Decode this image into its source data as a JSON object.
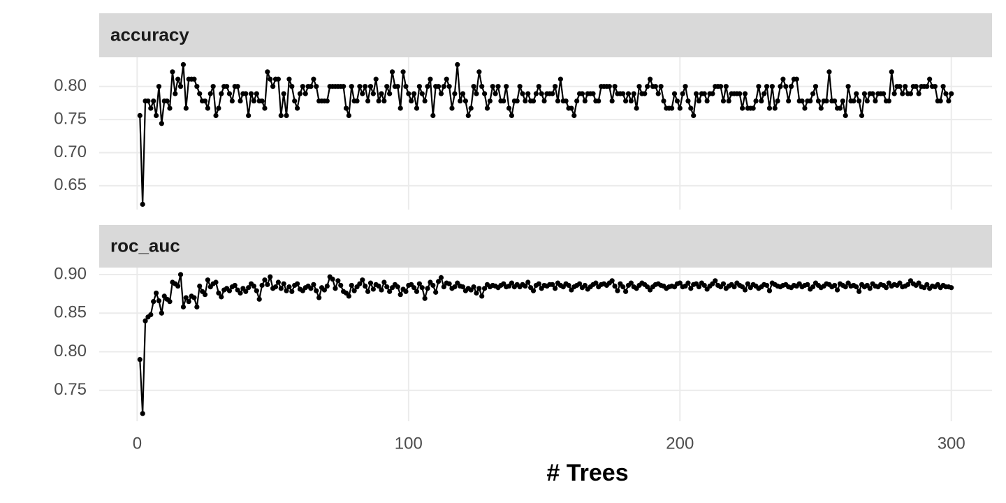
{
  "chart_data": [
    {
      "type": "line",
      "title": "accuracy",
      "color": "#000000",
      "grid": true,
      "xlim": [
        -14,
        315
      ],
      "xticks": [
        0,
        100,
        200,
        300
      ],
      "ylim": [
        0.614,
        0.844
      ],
      "yticks": [
        {
          "value": 0.65,
          "label": "0.65"
        },
        {
          "value": 0.7,
          "label": "0.70"
        },
        {
          "value": 0.75,
          "label": "0.75"
        },
        {
          "value": 0.8,
          "label": "0.80"
        }
      ],
      "x": [
        1,
        2,
        3,
        4,
        5,
        6,
        7,
        8,
        9,
        10,
        11,
        12,
        13,
        14,
        15,
        16,
        17,
        18,
        19,
        20,
        21,
        22,
        23,
        24,
        25,
        26,
        27,
        28,
        29,
        30,
        31,
        32,
        33,
        34,
        35,
        36,
        37,
        38,
        39,
        40,
        41,
        42,
        43,
        44,
        45,
        46,
        47,
        48,
        49,
        50,
        51,
        52,
        53,
        54,
        55,
        56,
        57,
        58,
        59,
        60,
        61,
        62,
        63,
        64,
        65,
        66,
        67,
        68,
        69,
        70,
        71,
        72,
        73,
        74,
        75,
        76,
        77,
        78,
        79,
        80,
        81,
        82,
        83,
        84,
        85,
        86,
        87,
        88,
        89,
        90,
        91,
        92,
        93,
        94,
        95,
        96,
        97,
        98,
        99,
        100,
        101,
        102,
        103,
        104,
        105,
        106,
        107,
        108,
        109,
        110,
        111,
        112,
        113,
        114,
        115,
        116,
        117,
        118,
        119,
        120,
        121,
        122,
        123,
        124,
        125,
        126,
        127,
        128,
        129,
        130,
        131,
        132,
        133,
        134,
        135,
        136,
        137,
        138,
        139,
        140,
        141,
        142,
        143,
        144,
        145,
        146,
        147,
        148,
        149,
        150,
        151,
        152,
        153,
        154,
        155,
        156,
        157,
        158,
        159,
        160,
        161,
        162,
        163,
        164,
        165,
        166,
        167,
        168,
        169,
        170,
        171,
        172,
        173,
        174,
        175,
        176,
        177,
        178,
        179,
        180,
        181,
        182,
        183,
        184,
        185,
        186,
        187,
        188,
        189,
        190,
        191,
        192,
        193,
        194,
        195,
        196,
        197,
        198,
        199,
        200,
        201,
        202,
        203,
        204,
        205,
        206,
        207,
        208,
        209,
        210,
        211,
        212,
        213,
        214,
        215,
        216,
        217,
        218,
        219,
        220,
        221,
        222,
        223,
        224,
        225,
        226,
        227,
        228,
        229,
        230,
        231,
        232,
        233,
        234,
        235,
        236,
        237,
        238,
        239,
        240,
        241,
        242,
        243,
        244,
        245,
        246,
        247,
        248,
        249,
        250,
        251,
        252,
        253,
        254,
        255,
        256,
        257,
        258,
        259,
        260,
        261,
        262,
        263,
        264,
        265,
        266,
        267,
        268,
        269,
        270,
        271,
        272,
        273,
        274,
        275,
        276,
        277,
        278,
        279,
        280,
        281,
        282,
        283,
        284,
        285,
        286,
        287,
        288,
        289,
        290,
        291,
        292,
        293,
        294,
        295,
        296,
        297,
        298,
        299,
        300
      ],
      "values": [
        0.756,
        0.622,
        0.778,
        0.778,
        0.767,
        0.778,
        0.756,
        0.8,
        0.744,
        0.778,
        0.778,
        0.767,
        0.822,
        0.789,
        0.811,
        0.8,
        0.833,
        0.767,
        0.811,
        0.811,
        0.811,
        0.8,
        0.789,
        0.778,
        0.778,
        0.767,
        0.789,
        0.8,
        0.756,
        0.767,
        0.789,
        0.8,
        0.8,
        0.789,
        0.778,
        0.8,
        0.8,
        0.778,
        0.789,
        0.789,
        0.756,
        0.789,
        0.778,
        0.789,
        0.778,
        0.778,
        0.767,
        0.822,
        0.811,
        0.8,
        0.811,
        0.811,
        0.756,
        0.789,
        0.756,
        0.811,
        0.8,
        0.778,
        0.767,
        0.789,
        0.8,
        0.789,
        0.8,
        0.8,
        0.811,
        0.8,
        0.778,
        0.778,
        0.778,
        0.778,
        0.8,
        0.8,
        0.8,
        0.8,
        0.8,
        0.8,
        0.767,
        0.756,
        0.8,
        0.778,
        0.778,
        0.8,
        0.789,
        0.8,
        0.778,
        0.8,
        0.789,
        0.811,
        0.778,
        0.789,
        0.778,
        0.8,
        0.789,
        0.822,
        0.8,
        0.8,
        0.767,
        0.822,
        0.8,
        0.789,
        0.778,
        0.789,
        0.767,
        0.8,
        0.789,
        0.778,
        0.8,
        0.811,
        0.756,
        0.8,
        0.8,
        0.789,
        0.8,
        0.811,
        0.8,
        0.767,
        0.789,
        0.833,
        0.778,
        0.789,
        0.778,
        0.756,
        0.767,
        0.8,
        0.789,
        0.822,
        0.8,
        0.789,
        0.767,
        0.778,
        0.8,
        0.789,
        0.8,
        0.778,
        0.778,
        0.8,
        0.767,
        0.756,
        0.778,
        0.778,
        0.8,
        0.789,
        0.778,
        0.789,
        0.778,
        0.778,
        0.789,
        0.8,
        0.789,
        0.778,
        0.789,
        0.789,
        0.789,
        0.8,
        0.778,
        0.811,
        0.778,
        0.778,
        0.767,
        0.767,
        0.756,
        0.778,
        0.789,
        0.789,
        0.778,
        0.789,
        0.789,
        0.789,
        0.778,
        0.778,
        0.8,
        0.8,
        0.8,
        0.8,
        0.778,
        0.8,
        0.789,
        0.789,
        0.789,
        0.778,
        0.789,
        0.778,
        0.789,
        0.767,
        0.8,
        0.789,
        0.789,
        0.8,
        0.811,
        0.8,
        0.8,
        0.789,
        0.8,
        0.778,
        0.767,
        0.767,
        0.767,
        0.789,
        0.778,
        0.767,
        0.789,
        0.8,
        0.778,
        0.767,
        0.756,
        0.789,
        0.778,
        0.789,
        0.789,
        0.778,
        0.789,
        0.789,
        0.8,
        0.8,
        0.8,
        0.778,
        0.8,
        0.778,
        0.789,
        0.789,
        0.789,
        0.789,
        0.767,
        0.789,
        0.767,
        0.767,
        0.767,
        0.778,
        0.8,
        0.778,
        0.789,
        0.8,
        0.767,
        0.8,
        0.767,
        0.778,
        0.8,
        0.811,
        0.8,
        0.778,
        0.8,
        0.811,
        0.811,
        0.778,
        0.778,
        0.767,
        0.778,
        0.778,
        0.789,
        0.8,
        0.778,
        0.767,
        0.778,
        0.778,
        0.822,
        0.778,
        0.778,
        0.767,
        0.767,
        0.778,
        0.756,
        0.8,
        0.778,
        0.778,
        0.789,
        0.778,
        0.756,
        0.789,
        0.778,
        0.789,
        0.789,
        0.778,
        0.789,
        0.789,
        0.789,
        0.778,
        0.778,
        0.822,
        0.789,
        0.8,
        0.8,
        0.789,
        0.8,
        0.789,
        0.789,
        0.8,
        0.8,
        0.789,
        0.8,
        0.8,
        0.8,
        0.811,
        0.8,
        0.8,
        0.778,
        0.778,
        0.8,
        0.789,
        0.778,
        0.789
      ]
    },
    {
      "type": "line",
      "title": "roc_auc",
      "color": "#000000",
      "grid": true,
      "xlabel": "# Trees",
      "xlim": [
        -14,
        315
      ],
      "xticks": [
        0,
        100,
        200,
        300
      ],
      "ylim": [
        0.71,
        0.909
      ],
      "yticks": [
        0.75,
        {
          "value": 0.8,
          "label": "0.80"
        },
        0.85,
        {
          "value": 0.9,
          "label": "0.90"
        }
      ],
      "x": [
        1,
        2,
        3,
        4,
        5,
        6,
        7,
        8,
        9,
        10,
        11,
        12,
        13,
        14,
        15,
        16,
        17,
        18,
        19,
        20,
        21,
        22,
        23,
        24,
        25,
        26,
        27,
        28,
        29,
        30,
        31,
        32,
        33,
        34,
        35,
        36,
        37,
        38,
        39,
        40,
        41,
        42,
        43,
        44,
        45,
        46,
        47,
        48,
        49,
        50,
        51,
        52,
        53,
        54,
        55,
        56,
        57,
        58,
        59,
        60,
        61,
        62,
        63,
        64,
        65,
        66,
        67,
        68,
        69,
        70,
        71,
        72,
        73,
        74,
        75,
        76,
        77,
        78,
        79,
        80,
        81,
        82,
        83,
        84,
        85,
        86,
        87,
        88,
        89,
        90,
        91,
        92,
        93,
        94,
        95,
        96,
        97,
        98,
        99,
        100,
        101,
        102,
        103,
        104,
        105,
        106,
        107,
        108,
        109,
        110,
        111,
        112,
        113,
        114,
        115,
        116,
        117,
        118,
        119,
        120,
        121,
        122,
        123,
        124,
        125,
        126,
        127,
        128,
        129,
        130,
        131,
        132,
        133,
        134,
        135,
        136,
        137,
        138,
        139,
        140,
        141,
        142,
        143,
        144,
        145,
        146,
        147,
        148,
        149,
        150,
        151,
        152,
        153,
        154,
        155,
        156,
        157,
        158,
        159,
        160,
        161,
        162,
        163,
        164,
        165,
        166,
        167,
        168,
        169,
        170,
        171,
        172,
        173,
        174,
        175,
        176,
        177,
        178,
        179,
        180,
        181,
        182,
        183,
        184,
        185,
        186,
        187,
        188,
        189,
        190,
        191,
        192,
        193,
        194,
        195,
        196,
        197,
        198,
        199,
        200,
        201,
        202,
        203,
        204,
        205,
        206,
        207,
        208,
        209,
        210,
        211,
        212,
        213,
        214,
        215,
        216,
        217,
        218,
        219,
        220,
        221,
        222,
        223,
        224,
        225,
        226,
        227,
        228,
        229,
        230,
        231,
        232,
        233,
        234,
        235,
        236,
        237,
        238,
        239,
        240,
        241,
        242,
        243,
        244,
        245,
        246,
        247,
        248,
        249,
        250,
        251,
        252,
        253,
        254,
        255,
        256,
        257,
        258,
        259,
        260,
        261,
        262,
        263,
        264,
        265,
        266,
        267,
        268,
        269,
        270,
        271,
        272,
        273,
        274,
        275,
        276,
        277,
        278,
        279,
        280,
        281,
        282,
        283,
        284,
        285,
        286,
        287,
        288,
        289,
        290,
        291,
        292,
        293,
        294,
        295,
        296,
        297,
        298,
        299,
        300
      ],
      "values": [
        0.79,
        0.72,
        0.84,
        0.845,
        0.848,
        0.865,
        0.876,
        0.866,
        0.85,
        0.872,
        0.868,
        0.865,
        0.89,
        0.888,
        0.885,
        0.9,
        0.858,
        0.87,
        0.865,
        0.872,
        0.87,
        0.858,
        0.885,
        0.878,
        0.874,
        0.893,
        0.884,
        0.888,
        0.89,
        0.876,
        0.871,
        0.88,
        0.882,
        0.879,
        0.884,
        0.886,
        0.88,
        0.876,
        0.882,
        0.878,
        0.883,
        0.888,
        0.885,
        0.879,
        0.868,
        0.886,
        0.893,
        0.887,
        0.897,
        0.882,
        0.884,
        0.89,
        0.882,
        0.888,
        0.879,
        0.884,
        0.878,
        0.886,
        0.888,
        0.881,
        0.879,
        0.883,
        0.885,
        0.882,
        0.887,
        0.879,
        0.87,
        0.883,
        0.88,
        0.885,
        0.897,
        0.894,
        0.882,
        0.892,
        0.886,
        0.878,
        0.876,
        0.872,
        0.886,
        0.879,
        0.884,
        0.888,
        0.893,
        0.885,
        0.878,
        0.889,
        0.881,
        0.887,
        0.885,
        0.88,
        0.89,
        0.884,
        0.878,
        0.883,
        0.887,
        0.884,
        0.874,
        0.881,
        0.878,
        0.886,
        0.887,
        0.883,
        0.878,
        0.888,
        0.883,
        0.869,
        0.882,
        0.89,
        0.886,
        0.877,
        0.891,
        0.896,
        0.884,
        0.889,
        0.888,
        0.882,
        0.884,
        0.889,
        0.885,
        0.884,
        0.879,
        0.882,
        0.88,
        0.884,
        0.876,
        0.882,
        0.872,
        0.882,
        0.887,
        0.884,
        0.886,
        0.885,
        0.883,
        0.886,
        0.888,
        0.884,
        0.885,
        0.889,
        0.884,
        0.887,
        0.884,
        0.887,
        0.885,
        0.89,
        0.883,
        0.879,
        0.886,
        0.888,
        0.882,
        0.886,
        0.885,
        0.887,
        0.887,
        0.882,
        0.889,
        0.886,
        0.884,
        0.888,
        0.886,
        0.88,
        0.884,
        0.886,
        0.888,
        0.883,
        0.886,
        0.881,
        0.884,
        0.887,
        0.889,
        0.884,
        0.887,
        0.888,
        0.886,
        0.889,
        0.892,
        0.885,
        0.879,
        0.888,
        0.884,
        0.878,
        0.886,
        0.889,
        0.884,
        0.882,
        0.886,
        0.889,
        0.887,
        0.884,
        0.88,
        0.884,
        0.887,
        0.888,
        0.886,
        0.885,
        0.882,
        0.884,
        0.885,
        0.884,
        0.888,
        0.889,
        0.884,
        0.885,
        0.889,
        0.882,
        0.887,
        0.888,
        0.884,
        0.889,
        0.886,
        0.881,
        0.885,
        0.888,
        0.892,
        0.886,
        0.884,
        0.888,
        0.882,
        0.885,
        0.887,
        0.884,
        0.889,
        0.886,
        0.884,
        0.88,
        0.888,
        0.883,
        0.887,
        0.885,
        0.882,
        0.884,
        0.887,
        0.886,
        0.879,
        0.889,
        0.887,
        0.885,
        0.884,
        0.886,
        0.887,
        0.884,
        0.883,
        0.886,
        0.885,
        0.888,
        0.884,
        0.886,
        0.887,
        0.881,
        0.884,
        0.889,
        0.886,
        0.883,
        0.885,
        0.888,
        0.887,
        0.884,
        0.886,
        0.88,
        0.888,
        0.886,
        0.884,
        0.889,
        0.885,
        0.886,
        0.884,
        0.878,
        0.887,
        0.884,
        0.886,
        0.882,
        0.888,
        0.885,
        0.884,
        0.887,
        0.886,
        0.883,
        0.889,
        0.885,
        0.887,
        0.886,
        0.889,
        0.884,
        0.885,
        0.887,
        0.892,
        0.888,
        0.886,
        0.889,
        0.884,
        0.883,
        0.887,
        0.882,
        0.885,
        0.884,
        0.887,
        0.883,
        0.886,
        0.884,
        0.884,
        0.883
      ]
    }
  ]
}
